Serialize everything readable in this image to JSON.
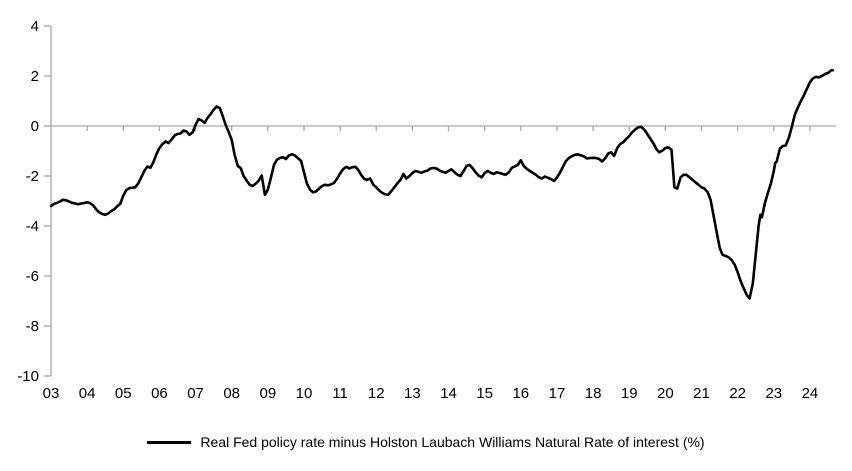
{
  "chart_data": {
    "type": "line",
    "title": "",
    "xlabel": "",
    "ylabel": "",
    "legend_position": "bottom",
    "grid": "zero-line-only",
    "axis_color": "#a6a6a6",
    "text_color": "#000000",
    "x_axis": {
      "tick_labels": [
        "03",
        "04",
        "05",
        "06",
        "07",
        "08",
        "09",
        "10",
        "11",
        "12",
        "13",
        "14",
        "15",
        "16",
        "17",
        "18",
        "19",
        "20",
        "21",
        "22",
        "23",
        "24"
      ],
      "tick_years": [
        2003,
        2004,
        2005,
        2006,
        2007,
        2008,
        2009,
        2010,
        2011,
        2012,
        2013,
        2014,
        2015,
        2016,
        2017,
        2018,
        2019,
        2020,
        2021,
        2022,
        2023,
        2024
      ],
      "range": [
        2003.0,
        2024.72
      ]
    },
    "y_axis": {
      "ticks": [
        4,
        2,
        0,
        -2,
        -4,
        -6,
        -8,
        -10
      ],
      "range": [
        -10,
        4
      ]
    },
    "series": [
      {
        "name": "Real Fed policy rate minus Holston Laubach Williams Natural Rate of interest (%)",
        "color": "#000000",
        "points": [
          [
            2003.0,
            -3.2
          ],
          [
            2003.08,
            -3.12
          ],
          [
            2003.17,
            -3.07
          ],
          [
            2003.25,
            -3.02
          ],
          [
            2003.33,
            -2.95
          ],
          [
            2003.42,
            -2.97
          ],
          [
            2003.5,
            -3.02
          ],
          [
            2003.58,
            -3.07
          ],
          [
            2003.67,
            -3.1
          ],
          [
            2003.75,
            -3.13
          ],
          [
            2003.83,
            -3.1
          ],
          [
            2003.92,
            -3.08
          ],
          [
            2004.0,
            -3.05
          ],
          [
            2004.08,
            -3.08
          ],
          [
            2004.17,
            -3.18
          ],
          [
            2004.25,
            -3.33
          ],
          [
            2004.33,
            -3.45
          ],
          [
            2004.42,
            -3.52
          ],
          [
            2004.5,
            -3.55
          ],
          [
            2004.58,
            -3.5
          ],
          [
            2004.67,
            -3.4
          ],
          [
            2004.75,
            -3.33
          ],
          [
            2004.83,
            -3.22
          ],
          [
            2004.92,
            -3.1
          ],
          [
            2005.0,
            -2.78
          ],
          [
            2005.08,
            -2.57
          ],
          [
            2005.17,
            -2.48
          ],
          [
            2005.25,
            -2.47
          ],
          [
            2005.33,
            -2.45
          ],
          [
            2005.42,
            -2.28
          ],
          [
            2005.5,
            -2.05
          ],
          [
            2005.58,
            -1.8
          ],
          [
            2005.67,
            -1.62
          ],
          [
            2005.75,
            -1.67
          ],
          [
            2005.83,
            -1.45
          ],
          [
            2005.92,
            -1.12
          ],
          [
            2006.0,
            -0.88
          ],
          [
            2006.08,
            -0.73
          ],
          [
            2006.17,
            -0.62
          ],
          [
            2006.25,
            -0.68
          ],
          [
            2006.33,
            -0.55
          ],
          [
            2006.42,
            -0.38
          ],
          [
            2006.5,
            -0.32
          ],
          [
            2006.58,
            -0.3
          ],
          [
            2006.67,
            -0.18
          ],
          [
            2006.75,
            -0.22
          ],
          [
            2006.83,
            -0.35
          ],
          [
            2006.92,
            -0.25
          ],
          [
            2007.0,
            0.05
          ],
          [
            2007.08,
            0.28
          ],
          [
            2007.17,
            0.22
          ],
          [
            2007.25,
            0.13
          ],
          [
            2007.33,
            0.32
          ],
          [
            2007.42,
            0.48
          ],
          [
            2007.5,
            0.65
          ],
          [
            2007.58,
            0.78
          ],
          [
            2007.67,
            0.72
          ],
          [
            2007.75,
            0.4
          ],
          [
            2007.83,
            0.05
          ],
          [
            2007.92,
            -0.25
          ],
          [
            2008.0,
            -0.55
          ],
          [
            2008.08,
            -1.15
          ],
          [
            2008.17,
            -1.6
          ],
          [
            2008.25,
            -1.68
          ],
          [
            2008.33,
            -2.0
          ],
          [
            2008.42,
            -2.2
          ],
          [
            2008.5,
            -2.35
          ],
          [
            2008.58,
            -2.4
          ],
          [
            2008.67,
            -2.3
          ],
          [
            2008.75,
            -2.18
          ],
          [
            2008.83,
            -1.98
          ],
          [
            2008.92,
            -2.75
          ],
          [
            2009.0,
            -2.55
          ],
          [
            2009.08,
            -2.1
          ],
          [
            2009.17,
            -1.55
          ],
          [
            2009.25,
            -1.35
          ],
          [
            2009.33,
            -1.28
          ],
          [
            2009.42,
            -1.25
          ],
          [
            2009.5,
            -1.32
          ],
          [
            2009.58,
            -1.18
          ],
          [
            2009.67,
            -1.13
          ],
          [
            2009.75,
            -1.18
          ],
          [
            2009.83,
            -1.28
          ],
          [
            2009.92,
            -1.4
          ],
          [
            2010.0,
            -1.85
          ],
          [
            2010.08,
            -2.3
          ],
          [
            2010.17,
            -2.55
          ],
          [
            2010.25,
            -2.65
          ],
          [
            2010.33,
            -2.62
          ],
          [
            2010.42,
            -2.5
          ],
          [
            2010.5,
            -2.4
          ],
          [
            2010.58,
            -2.35
          ],
          [
            2010.67,
            -2.37
          ],
          [
            2010.75,
            -2.33
          ],
          [
            2010.83,
            -2.28
          ],
          [
            2010.92,
            -2.1
          ],
          [
            2011.0,
            -1.9
          ],
          [
            2011.08,
            -1.73
          ],
          [
            2011.17,
            -1.63
          ],
          [
            2011.25,
            -1.7
          ],
          [
            2011.33,
            -1.65
          ],
          [
            2011.42,
            -1.63
          ],
          [
            2011.5,
            -1.75
          ],
          [
            2011.58,
            -1.95
          ],
          [
            2011.67,
            -2.12
          ],
          [
            2011.75,
            -2.15
          ],
          [
            2011.83,
            -2.1
          ],
          [
            2011.92,
            -2.35
          ],
          [
            2012.0,
            -2.45
          ],
          [
            2012.08,
            -2.58
          ],
          [
            2012.17,
            -2.68
          ],
          [
            2012.25,
            -2.73
          ],
          [
            2012.33,
            -2.75
          ],
          [
            2012.42,
            -2.6
          ],
          [
            2012.5,
            -2.45
          ],
          [
            2012.58,
            -2.3
          ],
          [
            2012.67,
            -2.15
          ],
          [
            2012.75,
            -1.92
          ],
          [
            2012.83,
            -2.1
          ],
          [
            2012.92,
            -2.0
          ],
          [
            2013.0,
            -1.88
          ],
          [
            2013.08,
            -1.8
          ],
          [
            2013.17,
            -1.83
          ],
          [
            2013.25,
            -1.87
          ],
          [
            2013.33,
            -1.82
          ],
          [
            2013.42,
            -1.78
          ],
          [
            2013.5,
            -1.7
          ],
          [
            2013.58,
            -1.68
          ],
          [
            2013.67,
            -1.7
          ],
          [
            2013.75,
            -1.78
          ],
          [
            2013.83,
            -1.83
          ],
          [
            2013.92,
            -1.87
          ],
          [
            2014.0,
            -1.8
          ],
          [
            2014.08,
            -1.73
          ],
          [
            2014.17,
            -1.85
          ],
          [
            2014.25,
            -1.95
          ],
          [
            2014.33,
            -2.0
          ],
          [
            2014.42,
            -1.8
          ],
          [
            2014.5,
            -1.6
          ],
          [
            2014.58,
            -1.55
          ],
          [
            2014.67,
            -1.7
          ],
          [
            2014.75,
            -1.85
          ],
          [
            2014.83,
            -1.98
          ],
          [
            2014.92,
            -2.05
          ],
          [
            2015.0,
            -1.88
          ],
          [
            2015.08,
            -1.8
          ],
          [
            2015.17,
            -1.87
          ],
          [
            2015.25,
            -1.92
          ],
          [
            2015.33,
            -1.85
          ],
          [
            2015.42,
            -1.88
          ],
          [
            2015.5,
            -1.92
          ],
          [
            2015.58,
            -1.95
          ],
          [
            2015.67,
            -1.85
          ],
          [
            2015.75,
            -1.67
          ],
          [
            2015.83,
            -1.62
          ],
          [
            2015.92,
            -1.55
          ],
          [
            2016.0,
            -1.37
          ],
          [
            2016.08,
            -1.6
          ],
          [
            2016.17,
            -1.72
          ],
          [
            2016.25,
            -1.8
          ],
          [
            2016.33,
            -1.87
          ],
          [
            2016.42,
            -1.95
          ],
          [
            2016.5,
            -2.05
          ],
          [
            2016.58,
            -2.1
          ],
          [
            2016.67,
            -2.02
          ],
          [
            2016.75,
            -2.07
          ],
          [
            2016.83,
            -2.12
          ],
          [
            2016.92,
            -2.2
          ],
          [
            2017.0,
            -2.05
          ],
          [
            2017.08,
            -1.87
          ],
          [
            2017.17,
            -1.62
          ],
          [
            2017.25,
            -1.4
          ],
          [
            2017.33,
            -1.28
          ],
          [
            2017.42,
            -1.2
          ],
          [
            2017.5,
            -1.15
          ],
          [
            2017.58,
            -1.13
          ],
          [
            2017.67,
            -1.18
          ],
          [
            2017.75,
            -1.22
          ],
          [
            2017.83,
            -1.3
          ],
          [
            2017.92,
            -1.28
          ],
          [
            2018.0,
            -1.27
          ],
          [
            2018.08,
            -1.28
          ],
          [
            2018.17,
            -1.32
          ],
          [
            2018.25,
            -1.42
          ],
          [
            2018.33,
            -1.3
          ],
          [
            2018.42,
            -1.1
          ],
          [
            2018.5,
            -1.05
          ],
          [
            2018.58,
            -1.2
          ],
          [
            2018.67,
            -0.88
          ],
          [
            2018.75,
            -0.72
          ],
          [
            2018.83,
            -0.65
          ],
          [
            2018.92,
            -0.52
          ],
          [
            2019.0,
            -0.4
          ],
          [
            2019.08,
            -0.25
          ],
          [
            2019.17,
            -0.13
          ],
          [
            2019.25,
            -0.05
          ],
          [
            2019.33,
            -0.03
          ],
          [
            2019.42,
            -0.15
          ],
          [
            2019.5,
            -0.32
          ],
          [
            2019.58,
            -0.5
          ],
          [
            2019.67,
            -0.7
          ],
          [
            2019.75,
            -0.92
          ],
          [
            2019.83,
            -1.05
          ],
          [
            2019.92,
            -0.98
          ],
          [
            2020.0,
            -0.88
          ],
          [
            2020.08,
            -0.85
          ],
          [
            2020.17,
            -0.95
          ],
          [
            2020.25,
            -2.45
          ],
          [
            2020.33,
            -2.5
          ],
          [
            2020.42,
            -2.05
          ],
          [
            2020.5,
            -1.95
          ],
          [
            2020.58,
            -1.95
          ],
          [
            2020.67,
            -2.05
          ],
          [
            2020.75,
            -2.15
          ],
          [
            2020.83,
            -2.25
          ],
          [
            2020.92,
            -2.35
          ],
          [
            2021.0,
            -2.45
          ],
          [
            2021.08,
            -2.5
          ],
          [
            2021.17,
            -2.65
          ],
          [
            2021.25,
            -2.95
          ],
          [
            2021.33,
            -3.55
          ],
          [
            2021.42,
            -4.25
          ],
          [
            2021.5,
            -4.85
          ],
          [
            2021.58,
            -5.15
          ],
          [
            2021.67,
            -5.2
          ],
          [
            2021.75,
            -5.25
          ],
          [
            2021.83,
            -5.35
          ],
          [
            2021.92,
            -5.55
          ],
          [
            2022.0,
            -5.85
          ],
          [
            2022.08,
            -6.2
          ],
          [
            2022.17,
            -6.5
          ],
          [
            2022.25,
            -6.75
          ],
          [
            2022.33,
            -6.9
          ],
          [
            2022.42,
            -6.3
          ],
          [
            2022.5,
            -5.15
          ],
          [
            2022.58,
            -4.0
          ],
          [
            2022.63,
            -3.55
          ],
          [
            2022.67,
            -3.65
          ],
          [
            2022.75,
            -3.1
          ],
          [
            2022.83,
            -2.7
          ],
          [
            2022.92,
            -2.3
          ],
          [
            2023.0,
            -1.8
          ],
          [
            2023.04,
            -1.48
          ],
          [
            2023.08,
            -1.42
          ],
          [
            2023.17,
            -0.9
          ],
          [
            2023.25,
            -0.8
          ],
          [
            2023.33,
            -0.78
          ],
          [
            2023.42,
            -0.45
          ],
          [
            2023.5,
            -0.02
          ],
          [
            2023.58,
            0.45
          ],
          [
            2023.67,
            0.75
          ],
          [
            2023.75,
            1.0
          ],
          [
            2023.83,
            1.22
          ],
          [
            2023.92,
            1.5
          ],
          [
            2024.0,
            1.75
          ],
          [
            2024.08,
            1.9
          ],
          [
            2024.17,
            1.97
          ],
          [
            2024.25,
            1.95
          ],
          [
            2024.33,
            2.0
          ],
          [
            2024.42,
            2.08
          ],
          [
            2024.5,
            2.12
          ],
          [
            2024.58,
            2.22
          ],
          [
            2024.63,
            2.23
          ]
        ]
      }
    ]
  },
  "legend": {
    "label": "Real Fed policy rate minus Holston Laubach Williams Natural Rate of interest (%)"
  }
}
